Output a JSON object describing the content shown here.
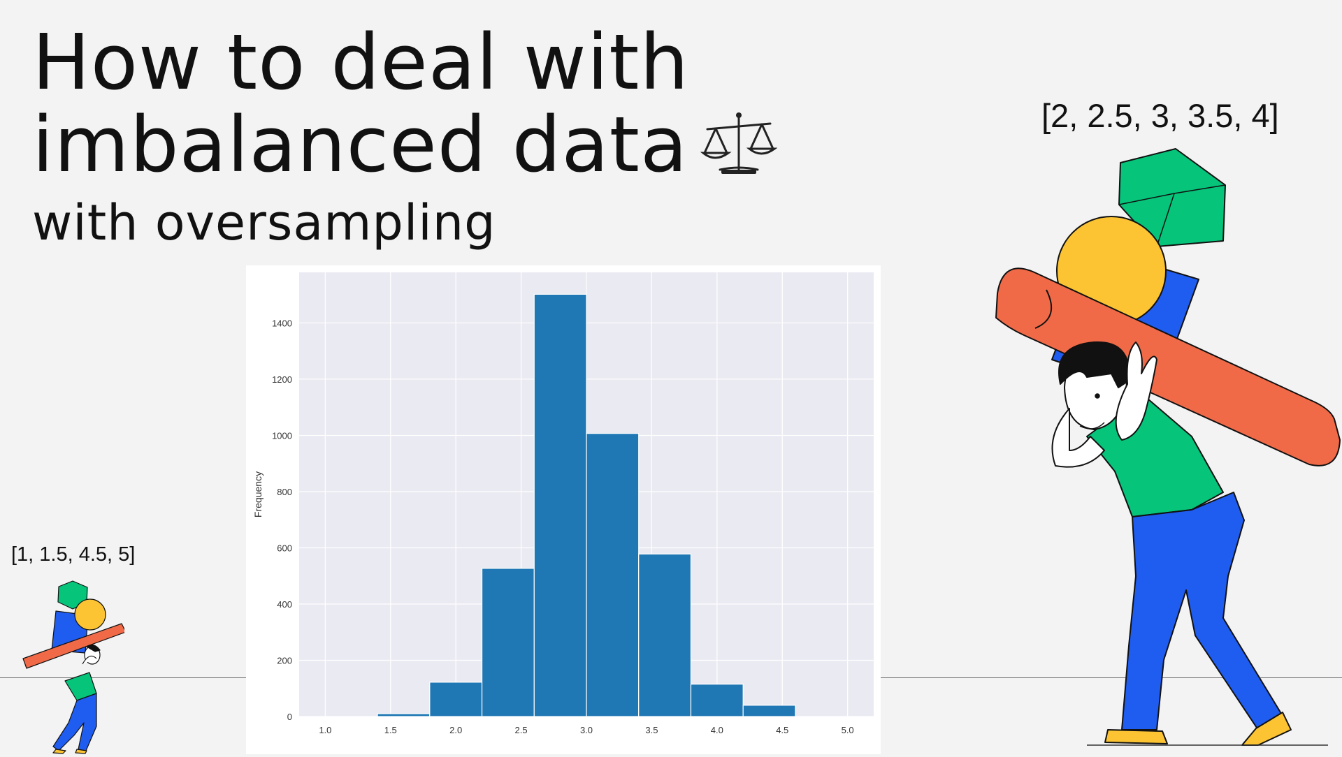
{
  "header": {
    "title_line1": "How to deal with",
    "title_line2": "imbalanced data",
    "subtitle": "with oversampling"
  },
  "captions": {
    "left": "[1, 1.5, 4.5, 5]",
    "right": "[2, 2.5, 3, 3.5, 4]"
  },
  "icons": {
    "title": "balance-scale-icon",
    "figures": "person-carrying-shapes-illustration"
  },
  "colors": {
    "background": "#f3f3f3",
    "plot_background": "#eaeaf2",
    "bar": "#1f77b4",
    "shape_green": "#06c47a",
    "shape_yellow": "#fcc433",
    "shape_blue": "#1f5cf0",
    "shape_orange": "#f06a48"
  },
  "chart_data": {
    "type": "bar",
    "title": "",
    "xlabel": "",
    "ylabel": "Frequency",
    "bin_edges": [
      1.0,
      1.4,
      1.8,
      2.2,
      2.6,
      3.0,
      3.4,
      3.8,
      4.2,
      4.6,
      5.0
    ],
    "values": [
      0,
      10,
      122,
      527,
      1502,
      1007,
      578,
      115,
      40,
      0
    ],
    "xlim": [
      0.8,
      5.2
    ],
    "ylim": [
      0,
      1580
    ],
    "xticks": [
      1.0,
      1.5,
      2.0,
      2.5,
      3.0,
      3.5,
      4.0,
      4.5,
      5.0
    ],
    "xtick_labels": [
      "1.0",
      "1.5",
      "2.0",
      "2.5",
      "3.0",
      "3.5",
      "4.0",
      "4.5",
      "5.0"
    ],
    "yticks": [
      0,
      200,
      400,
      600,
      800,
      1000,
      1200,
      1400
    ],
    "ytick_labels": [
      "0",
      "200",
      "400",
      "600",
      "800",
      "1000",
      "1200",
      "1400"
    ],
    "grid": true,
    "legend": "none"
  }
}
